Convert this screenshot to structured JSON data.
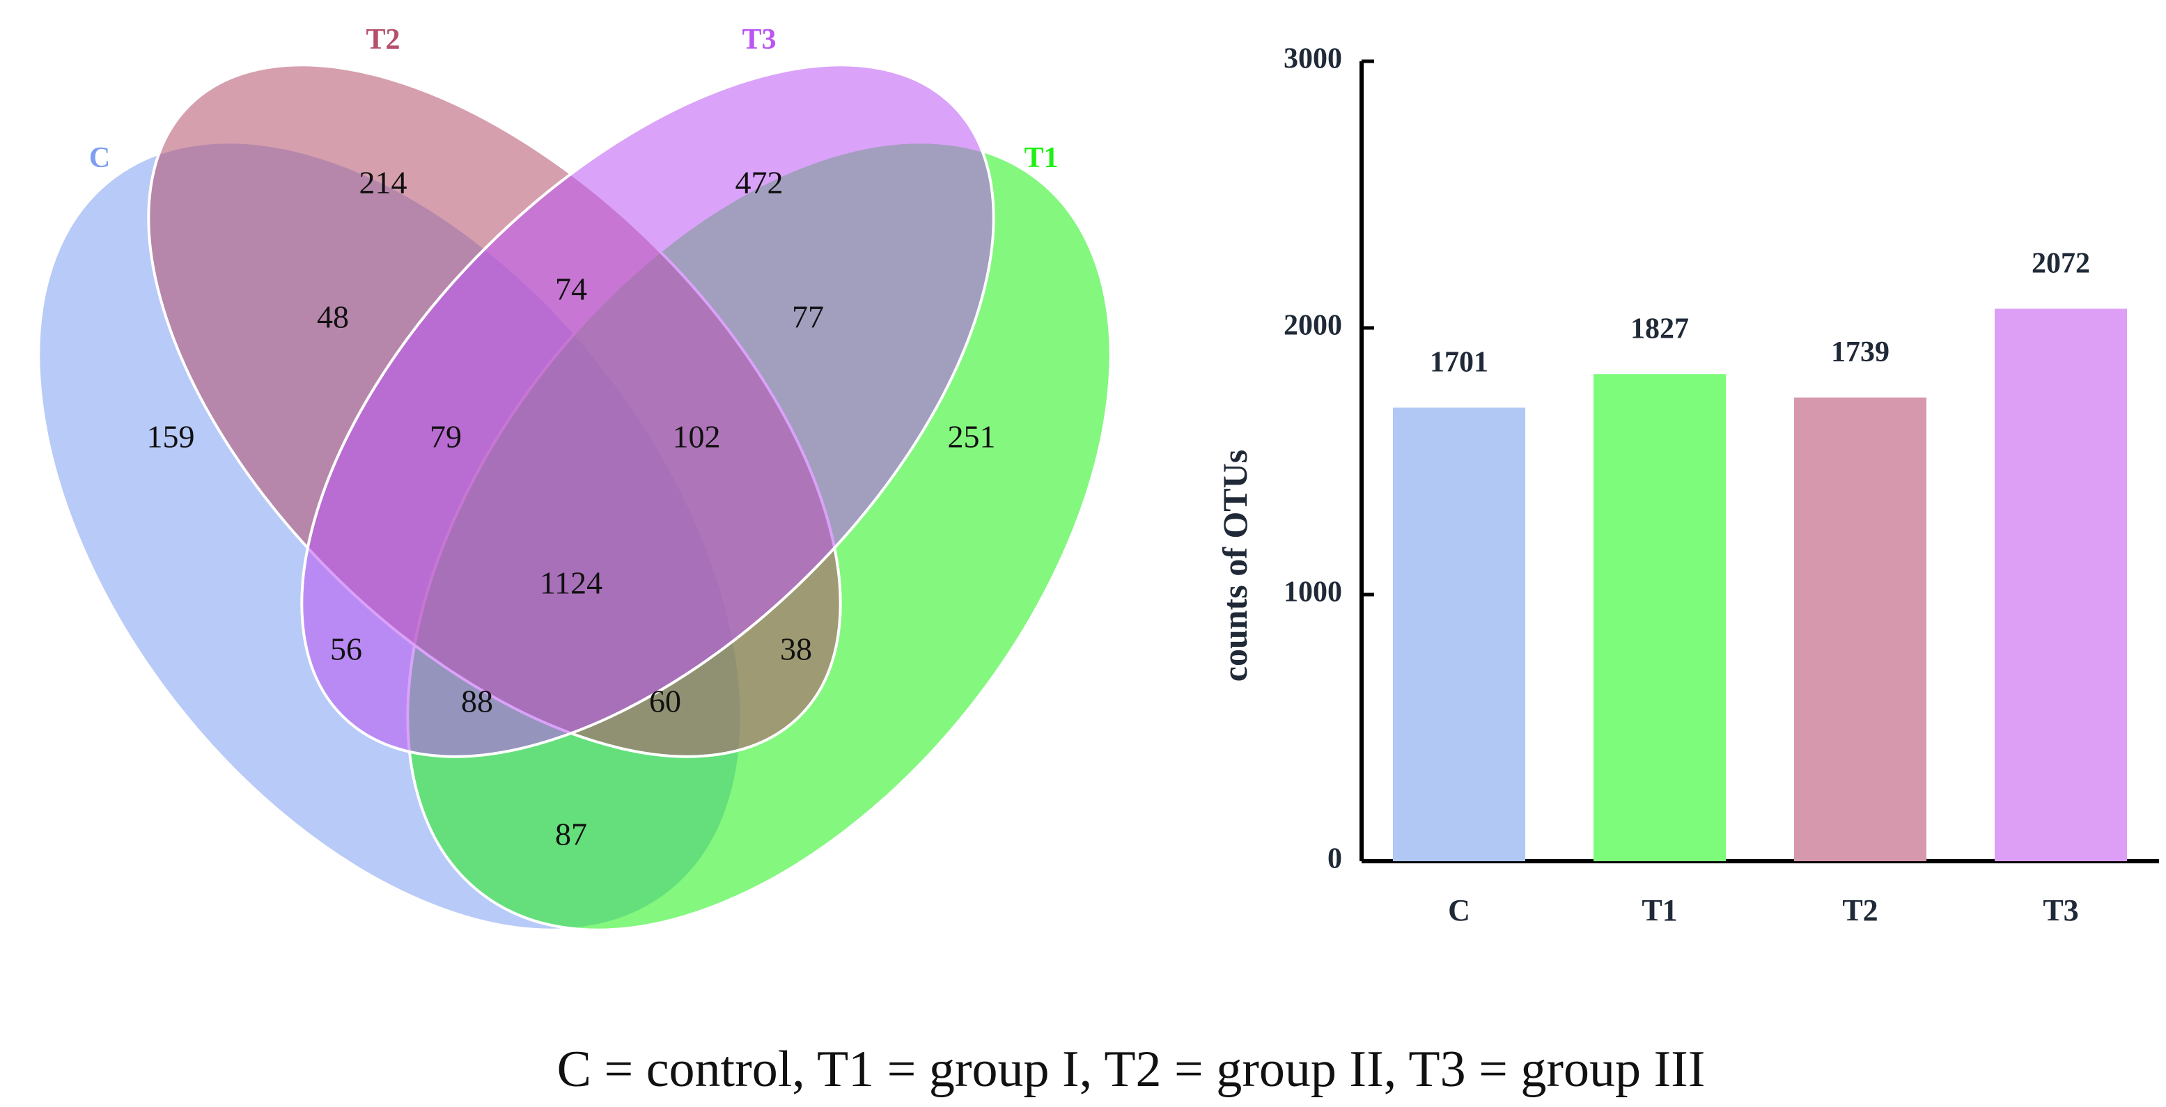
{
  "chart_data": [
    {
      "type": "venn",
      "sets": [
        {
          "name": "C",
          "color": "#7d9ff0"
        },
        {
          "name": "T2",
          "color": "#b5506c"
        },
        {
          "name": "T3",
          "color": "#bb55f2"
        },
        {
          "name": "T1",
          "color": "#1ff015"
        }
      ],
      "regions": [
        {
          "sets": [
            "C"
          ],
          "value": 159
        },
        {
          "sets": [
            "T2"
          ],
          "value": 214
        },
        {
          "sets": [
            "T3"
          ],
          "value": 472
        },
        {
          "sets": [
            "T1"
          ],
          "value": 251
        },
        {
          "sets": [
            "C",
            "T2"
          ],
          "value": 48
        },
        {
          "sets": [
            "T2",
            "T3"
          ],
          "value": 74
        },
        {
          "sets": [
            "T3",
            "T1"
          ],
          "value": 77
        },
        {
          "sets": [
            "C",
            "T2",
            "T3"
          ],
          "value": 79
        },
        {
          "sets": [
            "T2",
            "T3",
            "T1"
          ],
          "value": 102
        },
        {
          "sets": [
            "C",
            "T3"
          ],
          "value": 56
        },
        {
          "sets": [
            "C",
            "T2",
            "T3",
            "T1"
          ],
          "value": 1124
        },
        {
          "sets": [
            "T2",
            "T1"
          ],
          "value": 38
        },
        {
          "sets": [
            "C",
            "T3",
            "T1"
          ],
          "value": 88
        },
        {
          "sets": [
            "C",
            "T2",
            "T1"
          ],
          "value": 60
        },
        {
          "sets": [
            "C",
            "T1"
          ],
          "value": 87
        }
      ]
    },
    {
      "type": "bar",
      "title": "",
      "xlabel": "",
      "ylabel": "counts of OTUs",
      "categories": [
        "C",
        "T1",
        "T2",
        "T3"
      ],
      "values": [
        1701,
        1827,
        1739,
        2072
      ],
      "colors": [
        "#b1c8f4",
        "#7dfb7a",
        "#d698ac",
        "#dd9ff6"
      ],
      "ylim": [
        0,
        3000
      ],
      "yticks": [
        0,
        1000,
        2000,
        3000
      ],
      "grid": false,
      "legend": "none"
    }
  ],
  "caption": "C = control, T1 = group I, T2 = group II, T3 = group III"
}
